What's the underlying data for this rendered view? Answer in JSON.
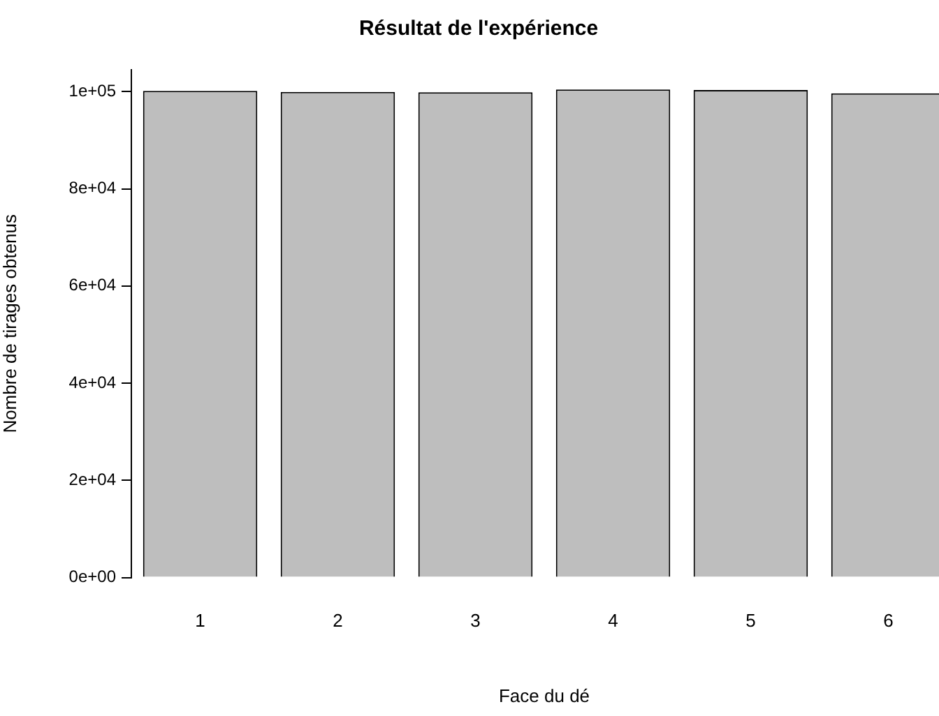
{
  "chart_data": {
    "type": "bar",
    "title": "Résultat de l'expérience",
    "xlabel": "Face du dé",
    "ylabel": "Nombre de tirages obtenus",
    "categories": [
      "1",
      "2",
      "3",
      "4",
      "5",
      "6"
    ],
    "values": [
      100150,
      99950,
      99870,
      100450,
      100350,
      99650
    ],
    "color": "#bebebe",
    "ylim": [
      0,
      104500
    ],
    "yticks": [
      {
        "value": 0,
        "label": "0e+00"
      },
      {
        "value": 20000,
        "label": "2e+04"
      },
      {
        "value": 40000,
        "label": "4e+04"
      },
      {
        "value": 60000,
        "label": "6e+04"
      },
      {
        "value": 80000,
        "label": "8e+04"
      },
      {
        "value": 100000,
        "label": "1e+05"
      }
    ],
    "grid": false,
    "legend": false
  }
}
